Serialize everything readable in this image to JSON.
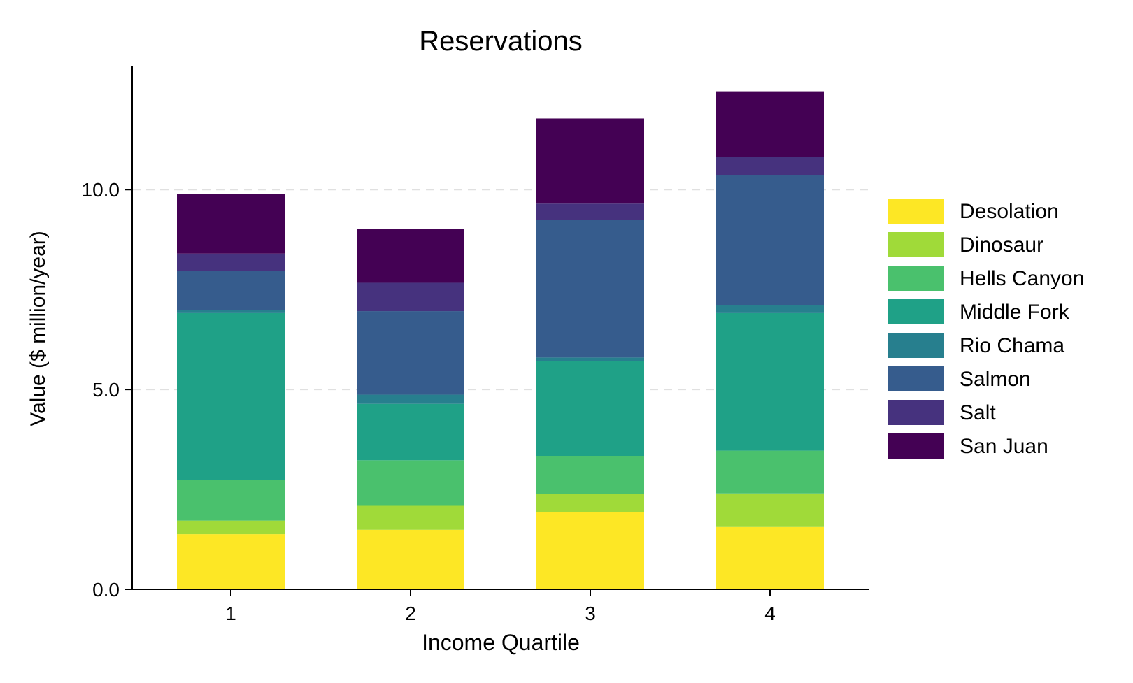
{
  "chart_data": {
    "type": "bar",
    "stacked": true,
    "title": "Reservations",
    "xlabel": "Income Quartile",
    "ylabel": "Value ($ million/year)",
    "ylim": [
      0,
      13.1
    ],
    "yticks": [
      0,
      5,
      10
    ],
    "ytick_labels": [
      "0.0",
      "5.0",
      "10.0"
    ],
    "categories": [
      "1",
      "2",
      "3",
      "4"
    ],
    "grid": "horizontal dashed at major y ticks",
    "legend_position": "right",
    "series": [
      {
        "name": "Desolation",
        "color": "#fde725",
        "values": [
          1.38,
          1.49,
          1.93,
          1.56
        ]
      },
      {
        "name": "Dinosaur",
        "color": "#a0da39",
        "values": [
          0.34,
          0.6,
          0.46,
          0.84
        ]
      },
      {
        "name": "Hells Canyon",
        "color": "#4ac16d",
        "values": [
          1.01,
          1.14,
          0.95,
          1.07
        ]
      },
      {
        "name": "Middle Fork",
        "color": "#1fa187",
        "values": [
          4.18,
          1.41,
          2.37,
          3.44
        ]
      },
      {
        "name": "Rio Chama",
        "color": "#277f8e",
        "values": [
          0.07,
          0.23,
          0.09,
          0.2
        ]
      },
      {
        "name": "Salmon",
        "color": "#365c8d",
        "values": [
          0.98,
          2.09,
          3.44,
          3.25
        ]
      },
      {
        "name": "Salt",
        "color": "#46327e",
        "values": [
          0.44,
          0.71,
          0.41,
          0.45
        ]
      },
      {
        "name": "San Juan",
        "color": "#440154",
        "values": [
          1.49,
          1.35,
          2.13,
          1.65
        ]
      }
    ]
  }
}
